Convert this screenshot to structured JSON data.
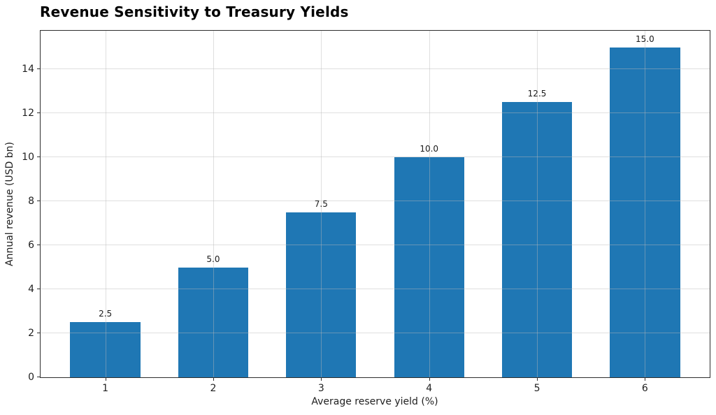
{
  "title": "Revenue Sensitivity to Treasury Yields",
  "chart_data": {
    "type": "bar",
    "title": "Revenue Sensitivity to Treasury Yields",
    "xlabel": "Average reserve yield (%)",
    "ylabel": "Annual revenue (USD bn)",
    "categories": [
      1,
      2,
      3,
      4,
      5,
      6
    ],
    "values": [
      2.5,
      5.0,
      7.5,
      10.0,
      12.5,
      15.0
    ],
    "bar_labels": [
      "2.5",
      "5.0",
      "7.5",
      "10.0",
      "12.5",
      "15.0"
    ],
    "xtick_labels": [
      "1",
      "2",
      "3",
      "4",
      "5",
      "6"
    ],
    "yticks": [
      0,
      2,
      4,
      6,
      8,
      10,
      12,
      14
    ],
    "ylim": [
      0,
      15.75
    ],
    "xlim": [
      0.4,
      6.6
    ],
    "bar_width_units": 0.65,
    "bar_color": "#1f77b4",
    "grid": true,
    "grid_over_bars": true,
    "legend": null
  }
}
